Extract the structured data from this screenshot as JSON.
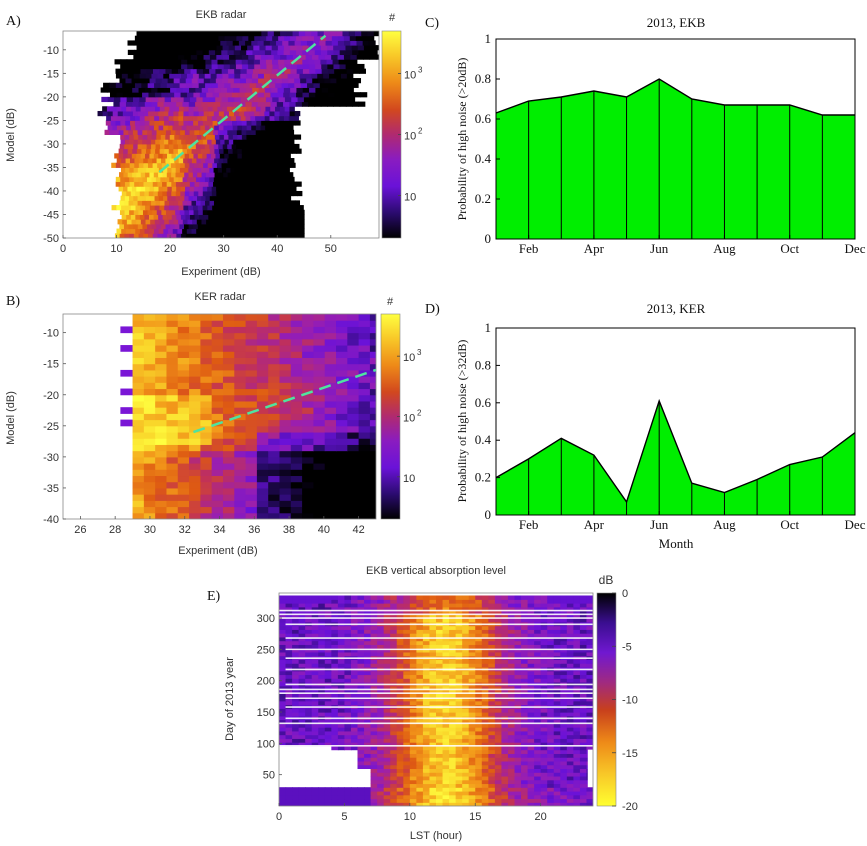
{
  "panels": {
    "A": {
      "label": "A)",
      "title": "EKB radar",
      "xlabel": "Experiment (dB)",
      "ylabel": "Model (dB)",
      "cbar_label": "#"
    },
    "B": {
      "label": "B)",
      "title": "KER radar",
      "xlabel": "Experiment (dB)",
      "ylabel": "Model (dB)",
      "cbar_label": "#"
    },
    "C": {
      "label": "C)",
      "title": "2013, EKB",
      "ylabel": "Probability of high noise (>20dB)"
    },
    "D": {
      "label": "D)",
      "title": "2013, KER",
      "ylabel": "Probability of high noise (>32dB)",
      "xlabel": "Month"
    },
    "E": {
      "label": "E)",
      "title": "EKB vertical absorption level",
      "xlabel": "LST (hour)",
      "ylabel": "Day of 2013 year",
      "cbar_label": "dB"
    }
  },
  "chart_data": [
    {
      "id": "A",
      "type": "heatmap",
      "title": "EKB radar",
      "xlabel": "Experiment (dB)",
      "ylabel": "Model (dB)",
      "xlim": [
        0,
        59
      ],
      "ylim": [
        -50,
        -6
      ],
      "xticks": [
        "0",
        "10",
        "20",
        "30",
        "40",
        "50"
      ],
      "yticks": [
        "-10",
        "-15",
        "-20",
        "-25",
        "-30",
        "-35",
        "-40",
        "-45",
        "-50"
      ],
      "colorbar": {
        "label": "#",
        "scale": "log",
        "ticks": [
          "10",
          "10",
          "10"
        ],
        "tick_exponents": [
          "3",
          "2",
          ""
        ],
        "tick_values": [
          1000,
          100,
          10
        ],
        "range": [
          2,
          5000
        ]
      },
      "fit_line": {
        "color": "#4fe3a0",
        "x": [
          18,
          49
        ],
        "y": [
          -36,
          -7
        ]
      },
      "colormap": [
        "#000000",
        "#2a0b6e",
        "#6a12d8",
        "#9a1fb0",
        "#c0305a",
        "#de5a12",
        "#f2961a",
        "#f9d52a",
        "#ffff40"
      ]
    },
    {
      "id": "B",
      "type": "heatmap",
      "title": "KER radar",
      "xlabel": "Experiment (dB)",
      "ylabel": "Model (dB)",
      "xlim": [
        25,
        43
      ],
      "ylim": [
        -40,
        -7
      ],
      "xticks": [
        "26",
        "28",
        "30",
        "32",
        "34",
        "36",
        "38",
        "40",
        "42"
      ],
      "yticks": [
        "-10",
        "-15",
        "-20",
        "-25",
        "-30",
        "-35",
        "-40"
      ],
      "colorbar": {
        "label": "#",
        "scale": "log",
        "ticks": [
          "10",
          "10",
          "10"
        ],
        "tick_exponents": [
          "3",
          "2",
          ""
        ],
        "tick_values": [
          1000,
          100,
          10
        ],
        "range": [
          2,
          5000
        ]
      },
      "fit_line": {
        "color": "#4fe3a0",
        "x": [
          32.5,
          43
        ],
        "y": [
          -26,
          -16
        ]
      }
    },
    {
      "id": "C",
      "type": "area",
      "title": "2013, EKB",
      "ylabel": "Probability of high noise (>20dB)",
      "x": [
        1,
        2,
        3,
        4,
        5,
        6,
        7,
        8,
        9,
        10,
        11,
        12
      ],
      "values": [
        0.63,
        0.69,
        0.71,
        0.74,
        0.71,
        0.8,
        0.7,
        0.67,
        0.67,
        0.67,
        0.62,
        0.62
      ],
      "xlim": [
        1,
        12
      ],
      "ylim": [
        0,
        1
      ],
      "xticks": [
        "Feb",
        "Apr",
        "Jun",
        "Aug",
        "Oct",
        "Dec"
      ],
      "yticks": [
        "0",
        "0.2",
        "0.4",
        "0.6",
        "0.8",
        "1"
      ],
      "fill": "#00ee00"
    },
    {
      "id": "D",
      "type": "area",
      "title": "2013, KER",
      "ylabel": "Probability of high noise (>32dB)",
      "xlabel": "Month",
      "x": [
        1,
        2,
        3,
        4,
        5,
        6,
        7,
        8,
        9,
        10,
        11,
        12
      ],
      "values": [
        0.2,
        0.3,
        0.41,
        0.32,
        0.07,
        0.61,
        0.17,
        0.12,
        0.19,
        0.27,
        0.31,
        0.44
      ],
      "xlim": [
        1,
        12
      ],
      "ylim": [
        0,
        1
      ],
      "xticks": [
        "Feb",
        "Apr",
        "Jun",
        "Aug",
        "Oct",
        "Dec"
      ],
      "yticks": [
        "0",
        "0.2",
        "0.4",
        "0.6",
        "0.8",
        "1"
      ],
      "fill": "#00ee00"
    },
    {
      "id": "E",
      "type": "heatmap",
      "title": "EKB vertical absorption level",
      "xlabel": "LST (hour)",
      "ylabel": "Day of 2013 year",
      "xlim": [
        0,
        24
      ],
      "ylim": [
        0,
        340
      ],
      "xticks": [
        "0",
        "5",
        "10",
        "15",
        "20"
      ],
      "yticks": [
        "50",
        "100",
        "150",
        "200",
        "250",
        "300"
      ],
      "colorbar": {
        "label": "dB",
        "scale": "linear",
        "ticks": [
          "0",
          "-5",
          "-10",
          "-15",
          "-20"
        ],
        "tick_values": [
          0,
          -5,
          -10,
          -15,
          -20
        ],
        "range": [
          -20,
          0
        ]
      }
    }
  ]
}
